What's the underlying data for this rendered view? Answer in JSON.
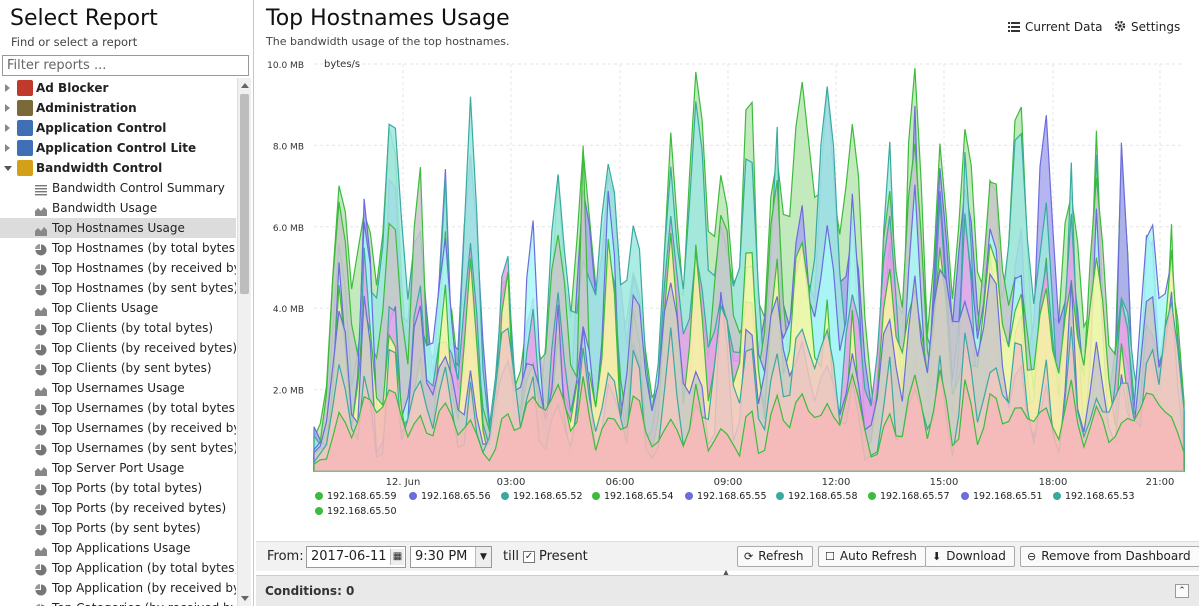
{
  "sidebar": {
    "title": "Select Report",
    "subtitle": "Find or select a report",
    "filter_placeholder": "Filter reports ...",
    "items": [
      {
        "label": "Ad Blocker",
        "type": "category",
        "expanded": false,
        "icon": "ad-blocker-icon",
        "color": "#c0392b"
      },
      {
        "label": "Administration",
        "type": "category",
        "expanded": false,
        "icon": "administration-icon",
        "color": "#7a6a3a"
      },
      {
        "label": "Application Control",
        "type": "category",
        "expanded": false,
        "icon": "application-control-icon",
        "color": "#3f6fb5"
      },
      {
        "label": "Application Control Lite",
        "type": "category",
        "expanded": false,
        "icon": "application-control-lite-icon",
        "color": "#3f6fb5"
      },
      {
        "label": "Bandwidth Control",
        "type": "category",
        "expanded": true,
        "icon": "bandwidth-control-icon",
        "color": "#d4a017"
      },
      {
        "label": "Bandwidth Control Summary",
        "type": "report",
        "icon": "text-report-icon"
      },
      {
        "label": "Bandwidth Usage",
        "type": "report",
        "icon": "area-chart-icon"
      },
      {
        "label": "Top Hostnames Usage",
        "type": "report",
        "icon": "area-chart-icon",
        "selected": true
      },
      {
        "label": "Top Hostnames (by total bytes)",
        "type": "report",
        "icon": "pie-chart-icon"
      },
      {
        "label": "Top Hostnames (by received byte...",
        "type": "report",
        "icon": "pie-chart-icon"
      },
      {
        "label": "Top Hostnames (by sent bytes)",
        "type": "report",
        "icon": "pie-chart-icon"
      },
      {
        "label": "Top Clients Usage",
        "type": "report",
        "icon": "area-chart-icon"
      },
      {
        "label": "Top Clients (by total bytes)",
        "type": "report",
        "icon": "pie-chart-icon"
      },
      {
        "label": "Top Clients (by received bytes)",
        "type": "report",
        "icon": "pie-chart-icon"
      },
      {
        "label": "Top Clients (by sent bytes)",
        "type": "report",
        "icon": "pie-chart-icon"
      },
      {
        "label": "Top Usernames Usage",
        "type": "report",
        "icon": "area-chart-icon"
      },
      {
        "label": "Top Usernames (by total bytes)",
        "type": "report",
        "icon": "pie-chart-icon"
      },
      {
        "label": "Top Usernames (by received bytes)",
        "type": "report",
        "icon": "pie-chart-icon"
      },
      {
        "label": "Top Usernames (by sent bytes)",
        "type": "report",
        "icon": "pie-chart-icon"
      },
      {
        "label": "Top Server Port Usage",
        "type": "report",
        "icon": "area-chart-icon"
      },
      {
        "label": "Top Ports (by total bytes)",
        "type": "report",
        "icon": "pie-chart-icon"
      },
      {
        "label": "Top Ports (by received bytes)",
        "type": "report",
        "icon": "pie-chart-icon"
      },
      {
        "label": "Top Ports (by sent bytes)",
        "type": "report",
        "icon": "pie-chart-icon"
      },
      {
        "label": "Top Applications Usage",
        "type": "report",
        "icon": "area-chart-icon"
      },
      {
        "label": "Top Application (by total bytes)",
        "type": "report",
        "icon": "pie-chart-icon"
      },
      {
        "label": "Top Application (by received bytes)",
        "type": "report",
        "icon": "pie-chart-icon"
      },
      {
        "label": "Top Categories (by received bytes)",
        "type": "report",
        "icon": "pie-chart-icon"
      }
    ]
  },
  "report": {
    "title": "Top Hostnames Usage",
    "subtitle": "The bandwidth usage of the top hostnames.",
    "current_data_label": "Current Data",
    "settings_label": "Settings"
  },
  "chart_data": {
    "type": "area",
    "stacked": false,
    "ylabel": "bytes/s",
    "ylim": [
      0,
      10000000
    ],
    "y_ticks": [
      {
        "value": 2000000,
        "label": "2.0 MB"
      },
      {
        "value": 4000000,
        "label": "4.0 MB"
      },
      {
        "value": 6000000,
        "label": "6.0 MB"
      },
      {
        "value": 8000000,
        "label": "8.0 MB"
      },
      {
        "value": 10000000,
        "label": "10.0 MB"
      }
    ],
    "x_ticks": [
      "12. Jun",
      "03:00",
      "06:00",
      "09:00",
      "12:00",
      "15:00",
      "18:00",
      "21:00"
    ],
    "grid": true,
    "legend_position": "bottom",
    "series": [
      {
        "name": "192.168.65.59",
        "color": "#3dbb3d",
        "peak": 9700000
      },
      {
        "name": "192.168.65.56",
        "color": "#6c6cdd",
        "peak": 9300000
      },
      {
        "name": "192.168.65.52",
        "color": "#3aaaa0",
        "peak": 8800000
      },
      {
        "name": "192.168.65.54",
        "color": "#3dbb3d",
        "peak": 7400000
      },
      {
        "name": "192.168.65.55",
        "color": "#6c6cdd",
        "peak": 6700000
      },
      {
        "name": "192.168.65.58",
        "color": "#3aaaa0",
        "peak": 6200000
      },
      {
        "name": "192.168.65.57",
        "color": "#3dbb3d",
        "peak": 5600000
      },
      {
        "name": "192.168.65.51",
        "color": "#6c6cdd",
        "peak": 4800000
      },
      {
        "name": "192.168.65.53",
        "color": "#3aaaa0",
        "peak": 3800000
      },
      {
        "name": "192.168.65.50",
        "color": "#3dbb3d",
        "peak": 2400000
      }
    ],
    "fills": [
      "#b8e6b0",
      "#a8a8f0",
      "#9fe8e0",
      "#c8c8c8",
      "#aaf7f7",
      "#e8a0e8",
      "#f7f7a0",
      "#c8c8c8",
      "#f0c8c0",
      "#f6b8b8"
    ]
  },
  "toolbar": {
    "from_label": "From:",
    "from_date": "2017-06-11",
    "from_time": "9:30 PM",
    "till_label": "till",
    "present_label": "Present",
    "present_checked": true,
    "refresh_label": "Refresh",
    "auto_refresh_label": "Auto Refresh",
    "download_label": "Download",
    "remove_label": "Remove from Dashboard"
  },
  "conditions": {
    "label": "Conditions: 0"
  }
}
